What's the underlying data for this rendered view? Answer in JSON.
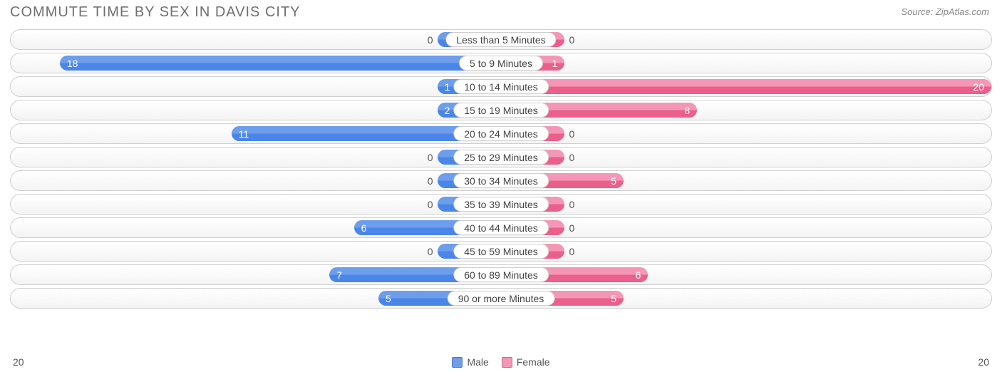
{
  "title": "COMMUTE TIME BY SEX IN DAVIS CITY",
  "source": "Source: ZipAtlas.com",
  "type": "diverging-bar",
  "axis_max": 20,
  "axis_left_label": "20",
  "axis_right_label": "20",
  "min_bar_pct": 13,
  "colors": {
    "male": "#6d9eeb",
    "male_dark": "#4a86e8",
    "female": "#f497b6",
    "female_dark": "#eb5f8b",
    "row_border": "#cfcfcf",
    "title": "#6f6f6f",
    "text": "#555555",
    "background": "#ffffff"
  },
  "legend": [
    {
      "label": "Male",
      "color": "#6d9eeb"
    },
    {
      "label": "Female",
      "color": "#f497b6"
    }
  ],
  "rows": [
    {
      "label": "Less than 5 Minutes",
      "male": 0,
      "female": 0
    },
    {
      "label": "5 to 9 Minutes",
      "male": 18,
      "female": 1
    },
    {
      "label": "10 to 14 Minutes",
      "male": 1,
      "female": 20
    },
    {
      "label": "15 to 19 Minutes",
      "male": 2,
      "female": 8
    },
    {
      "label": "20 to 24 Minutes",
      "male": 11,
      "female": 0
    },
    {
      "label": "25 to 29 Minutes",
      "male": 0,
      "female": 0
    },
    {
      "label": "30 to 34 Minutes",
      "male": 0,
      "female": 5
    },
    {
      "label": "35 to 39 Minutes",
      "male": 0,
      "female": 0
    },
    {
      "label": "40 to 44 Minutes",
      "male": 6,
      "female": 0
    },
    {
      "label": "45 to 59 Minutes",
      "male": 0,
      "female": 0
    },
    {
      "label": "60 to 89 Minutes",
      "male": 7,
      "female": 6
    },
    {
      "label": "90 or more Minutes",
      "male": 5,
      "female": 5
    }
  ]
}
